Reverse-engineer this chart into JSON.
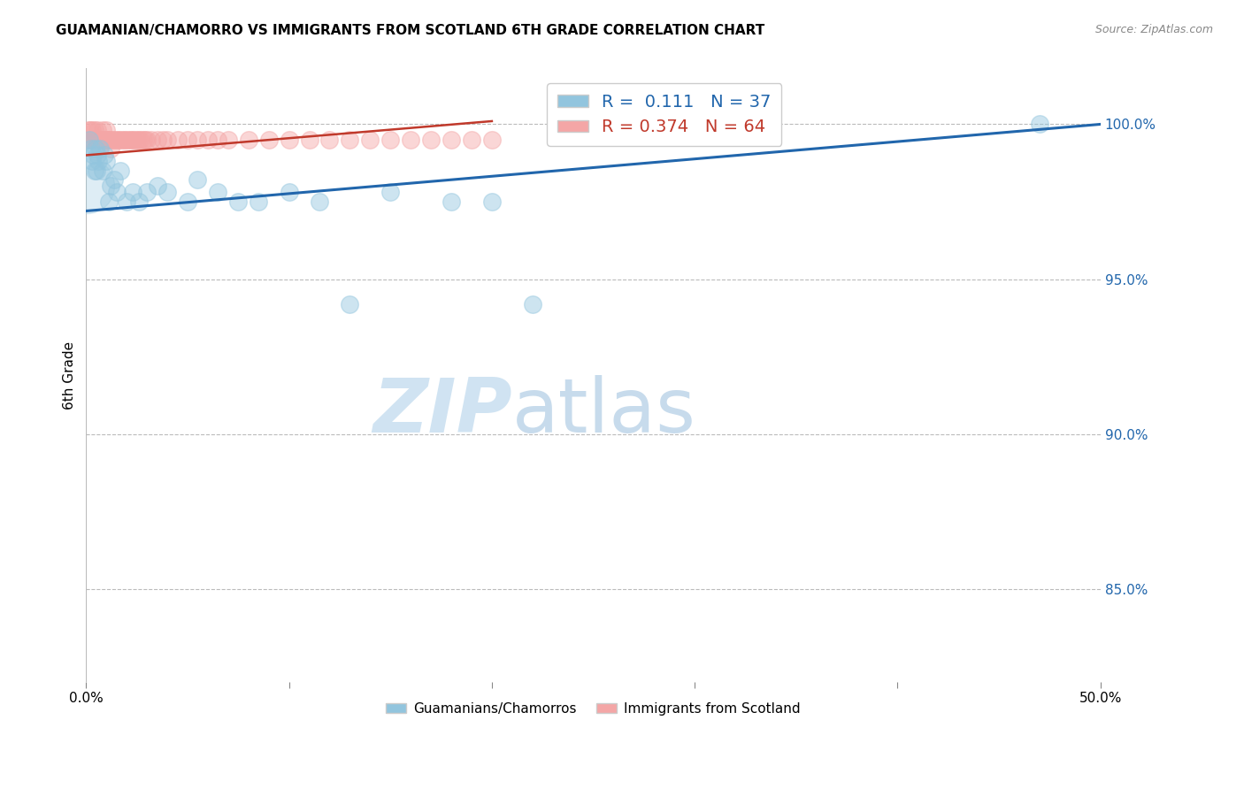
{
  "title": "GUAMANIAN/CHAMORRO VS IMMIGRANTS FROM SCOTLAND 6TH GRADE CORRELATION CHART",
  "source": "Source: ZipAtlas.com",
  "ylabel": "6th Grade",
  "xlim": [
    0.0,
    50.0
  ],
  "ylim": [
    82.0,
    101.8
  ],
  "yticks": [
    85.0,
    90.0,
    95.0,
    100.0
  ],
  "ytick_labels": [
    "85.0%",
    "90.0%",
    "95.0%",
    "100.0%"
  ],
  "blue_color": "#92c5de",
  "pink_color": "#f4a6a6",
  "blue_line_color": "#2166ac",
  "pink_line_color": "#c0392b",
  "blue_scatter_x": [
    0.15,
    0.25,
    0.3,
    0.35,
    0.4,
    0.45,
    0.5,
    0.55,
    0.6,
    0.7,
    0.8,
    0.9,
    1.0,
    1.1,
    1.2,
    1.4,
    1.5,
    1.7,
    2.0,
    2.3,
    2.6,
    3.0,
    3.5,
    4.0,
    5.0,
    5.5,
    6.5,
    7.5,
    8.5,
    10.0,
    11.5,
    13.0,
    15.0,
    18.0,
    20.0,
    22.0,
    47.0
  ],
  "blue_scatter_y": [
    99.5,
    99.2,
    98.8,
    99.0,
    98.5,
    99.2,
    98.5,
    99.0,
    98.8,
    99.2,
    98.5,
    99.0,
    98.8,
    97.5,
    98.0,
    98.2,
    97.8,
    98.5,
    97.5,
    97.8,
    97.5,
    97.8,
    98.0,
    97.8,
    97.5,
    98.2,
    97.8,
    97.5,
    97.5,
    97.8,
    97.5,
    94.2,
    97.8,
    97.5,
    97.5,
    94.2,
    100.0
  ],
  "pink_scatter_x": [
    0.1,
    0.15,
    0.2,
    0.25,
    0.3,
    0.35,
    0.4,
    0.45,
    0.5,
    0.55,
    0.6,
    0.65,
    0.7,
    0.75,
    0.8,
    0.85,
    0.9,
    0.95,
    1.0,
    1.05,
    1.1,
    1.15,
    1.2,
    1.3,
    1.4,
    1.5,
    1.6,
    1.7,
    1.8,
    1.9,
    2.0,
    2.1,
    2.2,
    2.3,
    2.4,
    2.5,
    2.6,
    2.7,
    2.8,
    2.9,
    3.0,
    3.2,
    3.5,
    3.8,
    4.0,
    4.5,
    5.0,
    5.5,
    6.0,
    6.5,
    7.0,
    8.0,
    9.0,
    10.0,
    11.0,
    12.0,
    13.0,
    14.0,
    15.0,
    16.0,
    17.0,
    18.0,
    19.0,
    20.0
  ],
  "pink_scatter_y": [
    99.8,
    99.5,
    99.8,
    99.5,
    99.8,
    99.5,
    99.8,
    99.5,
    99.5,
    99.8,
    99.5,
    99.2,
    99.5,
    99.5,
    99.8,
    99.5,
    99.5,
    99.5,
    99.8,
    99.5,
    99.5,
    99.5,
    99.2,
    99.5,
    99.5,
    99.5,
    99.5,
    99.5,
    99.5,
    99.5,
    99.5,
    99.5,
    99.5,
    99.5,
    99.5,
    99.5,
    99.5,
    99.5,
    99.5,
    99.5,
    99.5,
    99.5,
    99.5,
    99.5,
    99.5,
    99.5,
    99.5,
    99.5,
    99.5,
    99.5,
    99.5,
    99.5,
    99.5,
    99.5,
    99.5,
    99.5,
    99.5,
    99.5,
    99.5,
    99.5,
    99.5,
    99.5,
    99.5,
    99.5
  ],
  "blue_trend_x": [
    0.0,
    50.0
  ],
  "blue_trend_y": [
    97.2,
    100.0
  ],
  "pink_trend_x": [
    0.0,
    20.0
  ],
  "pink_trend_y": [
    99.0,
    100.1
  ],
  "watermark_zip": "ZIP",
  "watermark_atlas": "atlas",
  "legend_blue_label": "R =  0.111   N = 37",
  "legend_pink_label": "R = 0.374   N = 64",
  "legend_guam": "Guamanians/Chamorros",
  "legend_scot": "Immigrants from Scotland"
}
